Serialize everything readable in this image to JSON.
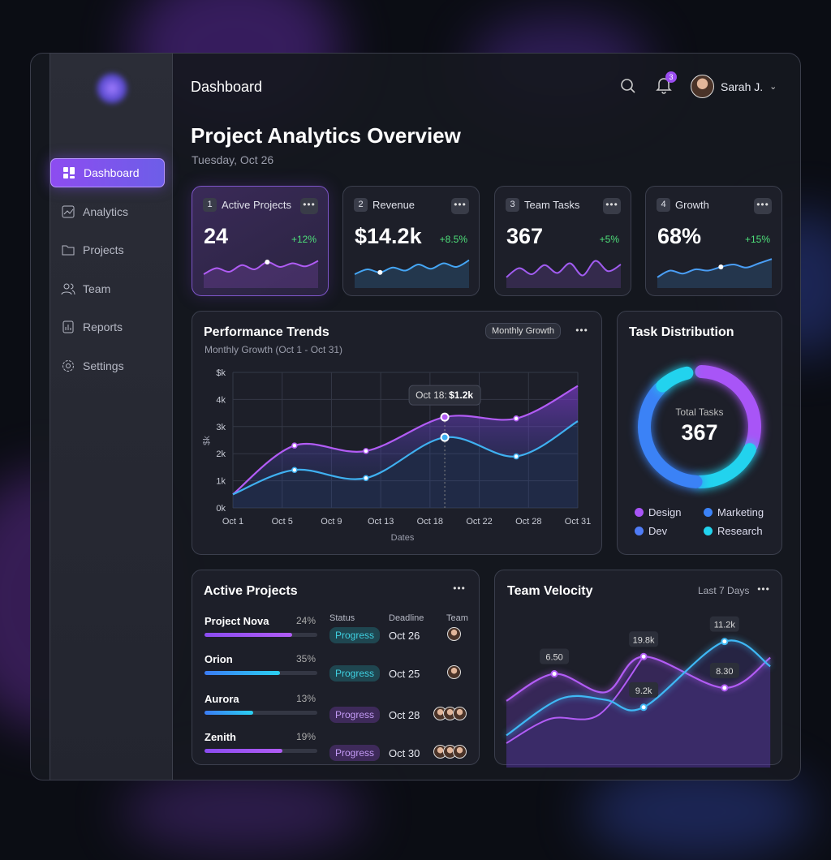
{
  "header": {
    "title": "Dashboard",
    "notifications": "3",
    "user": "Sarah J."
  },
  "sidebar": {
    "items": [
      {
        "label": "Dashboard",
        "icon": "grid-icon"
      },
      {
        "label": "Analytics",
        "icon": "analytics-icon"
      },
      {
        "label": "Projects",
        "icon": "folder-icon"
      },
      {
        "label": "Team",
        "icon": "users-icon"
      },
      {
        "label": "Reports",
        "icon": "report-icon"
      },
      {
        "label": "Settings",
        "icon": "gear-icon"
      }
    ]
  },
  "page": {
    "title": "Project Analytics Overview",
    "date": "Tuesday, Oct 26"
  },
  "stats": [
    {
      "n": "1",
      "label": "Active Projects",
      "value": "24",
      "change": "+12%",
      "spark": [
        2,
        3,
        2.4,
        3.5,
        2.8,
        4,
        3.2,
        3.8,
        3.3,
        4.2
      ],
      "color": "#b05cf5"
    },
    {
      "n": "2",
      "label": "Revenue",
      "value": "$14.2k",
      "change": "+8.5%",
      "spark": [
        2,
        2.8,
        2.3,
        3.1,
        2.6,
        3.6,
        2.9,
        3.8,
        3.2,
        4.3
      ],
      "color": "#45a6f5"
    },
    {
      "n": "3",
      "label": "Team Tasks",
      "value": "367",
      "change": "+5%",
      "spark": [
        1.5,
        3,
        2,
        3.5,
        2.2,
        3.8,
        1.8,
        4.2,
        2.5,
        3.6
      ],
      "color": "#a15cf0"
    },
    {
      "n": "4",
      "label": "Growth",
      "value": "68%",
      "change": "+15%",
      "spark": [
        1.5,
        2.6,
        2.1,
        2.8,
        2.6,
        3.2,
        3.6,
        3.1,
        3.8,
        4.5
      ],
      "color": "#4a9ef5"
    }
  ],
  "performance": {
    "title": "Performance Trends",
    "subtitle": "Monthly Growth (Oct 1 - Oct 31)",
    "filter": "Monthly Growth"
  },
  "chart_data": [
    {
      "type": "line",
      "title": "Performance Trends",
      "xlabel": "Dates",
      "ylabel": "$k",
      "categories": [
        "Oct 1",
        "Oct 5",
        "Oct 9",
        "Oct 13",
        "Oct 18",
        "Oct 22",
        "Oct 28",
        "Oct 31"
      ],
      "yticks": [
        "0k",
        "1k",
        "2k",
        "3k",
        "4k",
        "$k"
      ],
      "ylim": [
        0,
        5
      ],
      "grid": true,
      "series": [
        {
          "name": "Series A",
          "color": "#b25cf5",
          "x": [
            0,
            1.25,
            2.7,
            4.3,
            5.75,
            7
          ],
          "values": [
            0.5,
            2.3,
            2.1,
            3.35,
            3.3,
            4.5
          ]
        },
        {
          "name": "Series B",
          "color": "#3fb0f0",
          "x": [
            0,
            1.25,
            2.7,
            4.3,
            5.75,
            7
          ],
          "values": [
            0.5,
            1.4,
            1.1,
            2.6,
            1.9,
            3.2
          ]
        }
      ],
      "tooltip": {
        "date": "Oct 18:",
        "value": "$1.2k",
        "series": 1,
        "index": 3
      }
    },
    {
      "type": "donut",
      "title": "Task Distribution",
      "center_label": "Total Tasks",
      "total": "367",
      "legend": [
        {
          "name": "Design",
          "color": "#a855f7"
        },
        {
          "name": "Marketing",
          "color": "#3b82f6"
        },
        {
          "name": "Dev",
          "color": "#4f7cf7"
        },
        {
          "name": "Research",
          "color": "#22d3ee"
        }
      ],
      "segments": [
        {
          "name": "Design",
          "share": 0.3,
          "color": "#a855f7"
        },
        {
          "name": "Research",
          "share": 0.18,
          "color": "#22d3ee"
        },
        {
          "name": "Marketing",
          "share": 0.36,
          "color": "#3b82f6"
        },
        {
          "name": "Research",
          "share": 0.08,
          "color": "#22d3ee"
        }
      ]
    },
    {
      "type": "line",
      "title": "Team Velocity",
      "range": "Last 7 Days",
      "series": [
        {
          "name": "Purple",
          "color": "#b25cf5",
          "x": [
            0,
            1.09,
            2.25,
            3.12,
            4.96,
            6
          ],
          "values": [
            4.3,
            6.8,
            5.1,
            8.4,
            5.5,
            8.3
          ],
          "labels": [
            "",
            "6.50",
            "",
            "19.8k",
            "8.30",
            ""
          ]
        },
        {
          "name": "Blue",
          "color": "#3fb8f5",
          "x": [
            0,
            1.24,
            2.25,
            3.12,
            4.96,
            6
          ],
          "values": [
            1.1,
            4.5,
            4.4,
            3.7,
            9.8,
            7.5
          ],
          "labels": [
            "",
            "",
            "",
            "9.2k",
            "11.2k",
            ""
          ]
        }
      ]
    }
  ],
  "task_distribution": {
    "title": "Task Distribution"
  },
  "projects": {
    "title": "Active Projects",
    "headers": {
      "status": "Status",
      "deadline": "Deadline",
      "team": "Team"
    },
    "rows": [
      {
        "name": "Project Nova",
        "pct": "24%",
        "fill": 0.78,
        "status": "Progress",
        "deadline": "Oct 26",
        "team": 1,
        "tone": "teal",
        "bar": "purple"
      },
      {
        "name": "Orion",
        "pct": "35%",
        "fill": 0.67,
        "status": "Progress",
        "deadline": "Oct 25",
        "team": 1,
        "tone": "teal",
        "bar": "blue"
      },
      {
        "name": "Aurora",
        "pct": "13%",
        "fill": 0.43,
        "status": "Progress",
        "deadline": "Oct 28",
        "team": 3,
        "tone": "purple",
        "bar": "blue"
      },
      {
        "name": "Zenith",
        "pct": "19%",
        "fill": 0.69,
        "status": "Progress",
        "deadline": "Oct 30",
        "team": 3,
        "tone": "purple",
        "bar": "purple"
      }
    ]
  },
  "velocity": {
    "title": "Team Velocity",
    "range": "Last 7 Days"
  }
}
